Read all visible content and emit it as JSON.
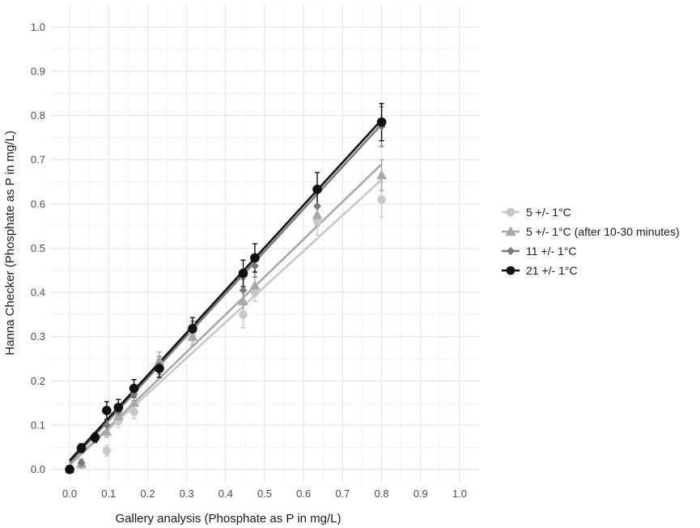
{
  "chart_data": {
    "type": "scatter",
    "title": "",
    "xlabel": "Gallery analysis (Phosphate as P in mg/L)",
    "ylabel": "Hanna Checker (Phosphate as P in mg/L)",
    "xlim": [
      -0.05,
      1.05
    ],
    "ylim": [
      -0.03,
      1.05
    ],
    "xticks": [
      "0.0",
      "0.1",
      "0.2",
      "0.3",
      "0.4",
      "0.5",
      "0.6",
      "0.7",
      "0.8",
      "0.9",
      "1.0"
    ],
    "yticks": [
      "0.0",
      "0.1",
      "0.2",
      "0.3",
      "0.4",
      "0.5",
      "0.6",
      "0.7",
      "0.8",
      "0.9",
      "1.0"
    ],
    "grid": true,
    "legend_position": "right",
    "series": [
      {
        "name": "5 +/- 1°C",
        "marker": "circle",
        "color": "#c8c8c8",
        "x": [
          0.0,
          0.03,
          0.095,
          0.125,
          0.165,
          0.23,
          0.315,
          0.445,
          0.475,
          0.635,
          0.8
        ],
        "y": [
          0.0,
          0.01,
          0.042,
          0.11,
          0.13,
          0.23,
          0.31,
          0.35,
          0.4,
          0.56,
          0.61
        ],
        "err": [
          0.005,
          0.008,
          0.012,
          0.015,
          0.015,
          0.02,
          0.02,
          0.03,
          0.02,
          0.03,
          0.04
        ],
        "fit": [
          [
            0.0,
            0.01
          ],
          [
            0.8,
            0.655
          ]
        ]
      },
      {
        "name": "5 +/- 1°C (after 10-30 minutes)",
        "marker": "triangle",
        "color": "#a8a8a8",
        "x": [
          0.0,
          0.03,
          0.095,
          0.125,
          0.165,
          0.23,
          0.315,
          0.445,
          0.475,
          0.635,
          0.8
        ],
        "y": [
          0.0,
          0.012,
          0.085,
          0.12,
          0.15,
          0.245,
          0.3,
          0.38,
          0.415,
          0.575,
          0.665
        ],
        "err": [
          0.005,
          0.008,
          0.012,
          0.015,
          0.015,
          0.02,
          0.02,
          0.025,
          0.02,
          0.025,
          0.035
        ],
        "fit": [
          [
            0.0,
            0.01
          ],
          [
            0.8,
            0.69
          ]
        ]
      },
      {
        "name": "11 +/- 1°C",
        "marker": "diamond",
        "color": "#7a7a7a",
        "x": [
          0.0,
          0.03,
          0.065,
          0.095,
          0.125,
          0.165,
          0.23,
          0.315,
          0.445,
          0.475,
          0.635,
          0.8
        ],
        "y": [
          0.0,
          0.015,
          0.07,
          0.1,
          0.13,
          0.17,
          0.235,
          0.315,
          0.405,
          0.46,
          0.595,
          0.775
        ],
        "err": [
          0.005,
          0.008,
          0.01,
          0.012,
          0.015,
          0.015,
          0.02,
          0.02,
          0.025,
          0.025,
          0.03,
          0.045
        ],
        "fit": [
          [
            0.0,
            0.015
          ],
          [
            0.8,
            0.78
          ]
        ]
      },
      {
        "name": "21 +/- 1°C",
        "marker": "circle",
        "color": "#111111",
        "x": [
          0.0,
          0.03,
          0.065,
          0.095,
          0.125,
          0.165,
          0.23,
          0.315,
          0.445,
          0.475,
          0.635,
          0.8
        ],
        "y": [
          0.0,
          0.048,
          0.072,
          0.133,
          0.14,
          0.183,
          0.228,
          0.318,
          0.443,
          0.478,
          0.633,
          0.785
        ],
        "err": [
          0.005,
          0.01,
          0.01,
          0.02,
          0.018,
          0.02,
          0.02,
          0.025,
          0.03,
          0.032,
          0.038,
          0.042
        ],
        "fit": [
          [
            0.0,
            0.02
          ],
          [
            0.8,
            0.79
          ]
        ]
      }
    ]
  }
}
